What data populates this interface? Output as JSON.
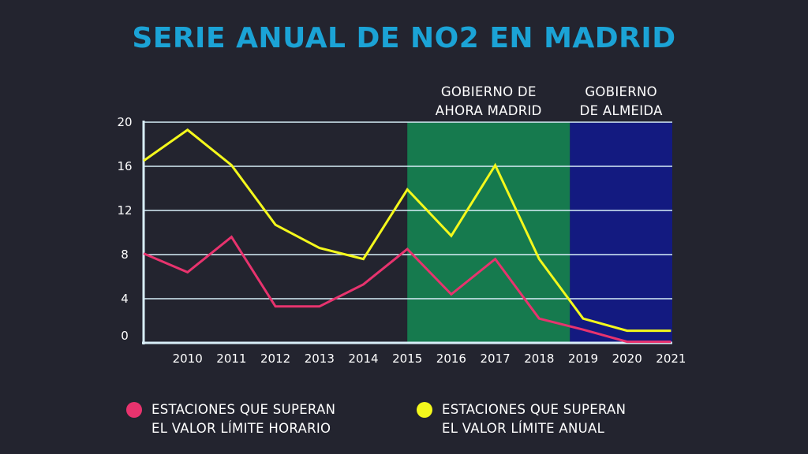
{
  "title": "SERIE ANUAL DE NO2 EN MADRID",
  "colors": {
    "background": "#23242f",
    "title": "#1ba3d6",
    "series_horario": "#e8336e",
    "series_anual": "#f4f81c",
    "band_ahora_madrid": "#167a4e",
    "band_almeida": "#131a80",
    "axis": "#d8eef8"
  },
  "legend": {
    "horario": {
      "line1": "ESTACIONES QUE SUPERAN",
      "line2": "EL VALOR LÍMITE HORARIO"
    },
    "anual": {
      "line1": "ESTACIONES QUE SUPERAN",
      "line2": "EL VALOR LÍMITE ANUAL"
    }
  },
  "chart_data": {
    "type": "line",
    "title": "SERIE ANUAL DE NO2 EN MADRID",
    "xlabel": "",
    "ylabel": "",
    "ylim": [
      0,
      20
    ],
    "yticks": [
      0,
      4,
      8,
      12,
      16,
      20
    ],
    "grid": true,
    "x": [
      2009,
      2010,
      2011,
      2012,
      2013,
      2014,
      2015,
      2016,
      2017,
      2018,
      2019,
      2020,
      2021
    ],
    "xtick_labels": [
      "2010",
      "2011",
      "2012",
      "2013",
      "2014",
      "2015",
      "2016",
      "2017",
      "2018",
      "2019",
      "2020",
      "2021"
    ],
    "series": [
      {
        "name": "ESTACIONES QUE SUPERAN EL VALOR LÍMITE HORARIO",
        "color": "#e8336e",
        "values": [
          8.1,
          6.4,
          9.6,
          3.3,
          3.3,
          5.3,
          8.5,
          4.4,
          7.6,
          2.2,
          1.2,
          0.1,
          0.1
        ]
      },
      {
        "name": "ESTACIONES QUE SUPERAN EL VALOR LÍMITE ANUAL",
        "color": "#f4f81c",
        "values": [
          16.5,
          19.3,
          16.1,
          10.7,
          8.6,
          7.6,
          13.9,
          9.7,
          16.1,
          7.6,
          2.2,
          1.1,
          1.1
        ]
      }
    ],
    "bands": [
      {
        "label_line1": "GOBIERNO DE",
        "label_line2": "AHORA MADRID",
        "from": 2015,
        "to": 2018.7,
        "color": "#167a4e"
      },
      {
        "label_line1": "GOBIERNO",
        "label_line2": "DE ALMEIDA",
        "from": 2018.7,
        "to": 2021.2,
        "color": "#131a80"
      }
    ]
  }
}
